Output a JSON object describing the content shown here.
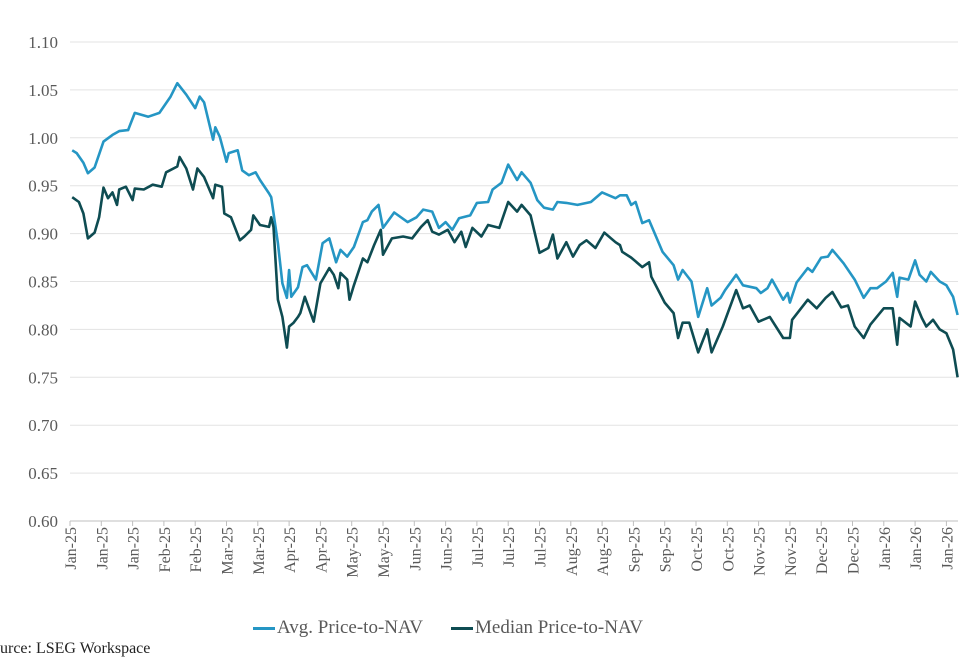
{
  "chart_data": {
    "type": "line",
    "title": "",
    "xlabel": "",
    "ylabel": "",
    "ylim": [
      0.6,
      1.1
    ],
    "yticks": [
      "0.60",
      "0.65",
      "0.70",
      "0.75",
      "0.80",
      "0.85",
      "0.90",
      "0.95",
      "1.00",
      "1.05",
      "1.10"
    ],
    "xlim": [
      "2025-01-02",
      "2026-02-03"
    ],
    "xtick_dates_start": "2025-01-02",
    "xtick_interval_days": 14,
    "xticks": [
      "Jan-25",
      "Jan-25",
      "Jan-25",
      "Feb-25",
      "Feb-25",
      "Mar-25",
      "Mar-25",
      "Apr-25",
      "Apr-25",
      "May-25",
      "May-25",
      "Jun-25",
      "Jun-25",
      "Jul-25",
      "Jul-25",
      "Jul-25",
      "Aug-25",
      "Aug-25",
      "Sep-25",
      "Sep-25",
      "Oct-25",
      "Oct-25",
      "Nov-25",
      "Nov-25",
      "Dec-25",
      "Dec-25",
      "Jan-26",
      "Jan-26",
      "Jan-26"
    ],
    "grid": "horizontal",
    "legend_position": "bottom",
    "series": [
      {
        "name": "Avg. Price-to-NAV",
        "color": "#2596c4",
        "points": [
          [
            "2025-01-03",
            0.987
          ],
          [
            "2025-01-05",
            0.984
          ],
          [
            "2025-01-08",
            0.974
          ],
          [
            "2025-01-10",
            0.963
          ],
          [
            "2025-01-13",
            0.969
          ],
          [
            "2025-01-17",
            0.996
          ],
          [
            "2025-01-21",
            1.003
          ],
          [
            "2025-01-24",
            1.007
          ],
          [
            "2025-01-28",
            1.008
          ],
          [
            "2025-01-31",
            1.026
          ],
          [
            "2025-02-06",
            1.022
          ],
          [
            "2025-02-11",
            1.026
          ],
          [
            "2025-02-16",
            1.043
          ],
          [
            "2025-02-19",
            1.057
          ],
          [
            "2025-02-23",
            1.045
          ],
          [
            "2025-02-27",
            1.031
          ],
          [
            "2025-03-01",
            1.043
          ],
          [
            "2025-03-03",
            1.037
          ],
          [
            "2025-03-07",
            0.998
          ],
          [
            "2025-03-08",
            1.011
          ],
          [
            "2025-03-10",
            1.001
          ],
          [
            "2025-03-13",
            0.975
          ],
          [
            "2025-03-14",
            0.984
          ],
          [
            "2025-03-18",
            0.987
          ],
          [
            "2025-03-20",
            0.966
          ],
          [
            "2025-03-23",
            0.961
          ],
          [
            "2025-03-26",
            0.964
          ],
          [
            "2025-03-28",
            0.956
          ],
          [
            "2025-04-01",
            0.942
          ],
          [
            "2025-04-02",
            0.938
          ],
          [
            "2025-04-05",
            0.89
          ],
          [
            "2025-04-07",
            0.848
          ],
          [
            "2025-04-09",
            0.833
          ],
          [
            "2025-04-10",
            0.862
          ],
          [
            "2025-04-11",
            0.834
          ],
          [
            "2025-04-14",
            0.844
          ],
          [
            "2025-04-16",
            0.865
          ],
          [
            "2025-04-18",
            0.867
          ],
          [
            "2025-04-22",
            0.852
          ],
          [
            "2025-04-25",
            0.89
          ],
          [
            "2025-04-28",
            0.895
          ],
          [
            "2025-05-01",
            0.87
          ],
          [
            "2025-05-03",
            0.883
          ],
          [
            "2025-05-06",
            0.876
          ],
          [
            "2025-05-09",
            0.886
          ],
          [
            "2025-05-13",
            0.912
          ],
          [
            "2025-05-15",
            0.914
          ],
          [
            "2025-05-17",
            0.923
          ],
          [
            "2025-05-20",
            0.93
          ],
          [
            "2025-05-22",
            0.906
          ],
          [
            "2025-05-27",
            0.922
          ],
          [
            "2025-06-02",
            0.912
          ],
          [
            "2025-06-06",
            0.917
          ],
          [
            "2025-06-09",
            0.925
          ],
          [
            "2025-06-13",
            0.923
          ],
          [
            "2025-06-16",
            0.906
          ],
          [
            "2025-06-19",
            0.912
          ],
          [
            "2025-06-22",
            0.904
          ],
          [
            "2025-06-25",
            0.916
          ],
          [
            "2025-06-30",
            0.919
          ],
          [
            "2025-07-03",
            0.932
          ],
          [
            "2025-07-08",
            0.933
          ],
          [
            "2025-07-10",
            0.946
          ],
          [
            "2025-07-14",
            0.953
          ],
          [
            "2025-07-17",
            0.972
          ],
          [
            "2025-07-21",
            0.956
          ],
          [
            "2025-07-23",
            0.964
          ],
          [
            "2025-07-27",
            0.953
          ],
          [
            "2025-07-30",
            0.935
          ],
          [
            "2025-08-02",
            0.927
          ],
          [
            "2025-08-06",
            0.925
          ],
          [
            "2025-08-08",
            0.933
          ],
          [
            "2025-08-12",
            0.932
          ],
          [
            "2025-08-17",
            0.93
          ],
          [
            "2025-08-23",
            0.933
          ],
          [
            "2025-08-28",
            0.943
          ],
          [
            "2025-09-03",
            0.937
          ],
          [
            "2025-09-05",
            0.94
          ],
          [
            "2025-09-08",
            0.94
          ],
          [
            "2025-09-10",
            0.93
          ],
          [
            "2025-09-12",
            0.933
          ],
          [
            "2025-09-15",
            0.911
          ],
          [
            "2025-09-18",
            0.914
          ],
          [
            "2025-09-24",
            0.881
          ],
          [
            "2025-09-29",
            0.867
          ],
          [
            "2025-10-01",
            0.852
          ],
          [
            "2025-10-03",
            0.862
          ],
          [
            "2025-10-07",
            0.85
          ],
          [
            "2025-10-10",
            0.813
          ],
          [
            "2025-10-14",
            0.843
          ],
          [
            "2025-10-16",
            0.825
          ],
          [
            "2025-10-20",
            0.833
          ],
          [
            "2025-10-22",
            0.841
          ],
          [
            "2025-10-27",
            0.857
          ],
          [
            "2025-10-30",
            0.846
          ],
          [
            "2025-11-05",
            0.843
          ],
          [
            "2025-11-07",
            0.838
          ],
          [
            "2025-11-10",
            0.843
          ],
          [
            "2025-11-12",
            0.852
          ],
          [
            "2025-11-17",
            0.831
          ],
          [
            "2025-11-19",
            0.838
          ],
          [
            "2025-11-20",
            0.828
          ],
          [
            "2025-11-23",
            0.849
          ],
          [
            "2025-11-28",
            0.864
          ],
          [
            "2025-11-30",
            0.86
          ],
          [
            "2025-12-04",
            0.875
          ],
          [
            "2025-12-07",
            0.876
          ],
          [
            "2025-12-09",
            0.883
          ],
          [
            "2025-12-14",
            0.869
          ],
          [
            "2025-12-19",
            0.852
          ],
          [
            "2025-12-23",
            0.833
          ],
          [
            "2025-12-26",
            0.843
          ],
          [
            "2025-12-29",
            0.843
          ],
          [
            "2026-01-02",
            0.85
          ],
          [
            "2026-01-05",
            0.859
          ],
          [
            "2026-01-07",
            0.834
          ],
          [
            "2026-01-08",
            0.854
          ],
          [
            "2026-01-12",
            0.852
          ],
          [
            "2026-01-15",
            0.872
          ],
          [
            "2026-01-17",
            0.857
          ],
          [
            "2026-01-20",
            0.85
          ],
          [
            "2026-01-22",
            0.86
          ],
          [
            "2026-01-26",
            0.85
          ],
          [
            "2026-01-29",
            0.846
          ],
          [
            "2026-02-01",
            0.834
          ],
          [
            "2026-02-03",
            0.815
          ]
        ]
      },
      {
        "name": "Median Price-to-NAV",
        "color": "#0e4c52",
        "points": [
          [
            "2025-01-03",
            0.938
          ],
          [
            "2025-01-06",
            0.933
          ],
          [
            "2025-01-08",
            0.921
          ],
          [
            "2025-01-10",
            0.895
          ],
          [
            "2025-01-13",
            0.901
          ],
          [
            "2025-01-15",
            0.917
          ],
          [
            "2025-01-17",
            0.948
          ],
          [
            "2025-01-19",
            0.937
          ],
          [
            "2025-01-21",
            0.943
          ],
          [
            "2025-01-23",
            0.93
          ],
          [
            "2025-01-24",
            0.946
          ],
          [
            "2025-01-27",
            0.949
          ],
          [
            "2025-01-30",
            0.935
          ],
          [
            "2025-01-31",
            0.947
          ],
          [
            "2025-02-04",
            0.946
          ],
          [
            "2025-02-08",
            0.951
          ],
          [
            "2025-02-12",
            0.949
          ],
          [
            "2025-02-14",
            0.964
          ],
          [
            "2025-02-19",
            0.97
          ],
          [
            "2025-02-20",
            0.98
          ],
          [
            "2025-02-23",
            0.968
          ],
          [
            "2025-02-26",
            0.946
          ],
          [
            "2025-02-28",
            0.968
          ],
          [
            "2025-03-03",
            0.959
          ],
          [
            "2025-03-07",
            0.937
          ],
          [
            "2025-03-08",
            0.951
          ],
          [
            "2025-03-11",
            0.949
          ],
          [
            "2025-03-12",
            0.921
          ],
          [
            "2025-03-15",
            0.917
          ],
          [
            "2025-03-19",
            0.893
          ],
          [
            "2025-03-21",
            0.897
          ],
          [
            "2025-03-24",
            0.904
          ],
          [
            "2025-03-25",
            0.919
          ],
          [
            "2025-03-28",
            0.909
          ],
          [
            "2025-04-01",
            0.907
          ],
          [
            "2025-04-02",
            0.917
          ],
          [
            "2025-04-03",
            0.907
          ],
          [
            "2025-04-05",
            0.831
          ],
          [
            "2025-04-07",
            0.813
          ],
          [
            "2025-04-09",
            0.781
          ],
          [
            "2025-04-10",
            0.803
          ],
          [
            "2025-04-12",
            0.807
          ],
          [
            "2025-04-14",
            0.813
          ],
          [
            "2025-04-15",
            0.817
          ],
          [
            "2025-04-17",
            0.834
          ],
          [
            "2025-04-21",
            0.808
          ],
          [
            "2025-04-24",
            0.848
          ],
          [
            "2025-04-28",
            0.864
          ],
          [
            "2025-04-30",
            0.857
          ],
          [
            "2025-05-02",
            0.843
          ],
          [
            "2025-05-03",
            0.859
          ],
          [
            "2025-05-06",
            0.852
          ],
          [
            "2025-05-07",
            0.831
          ],
          [
            "2025-05-09",
            0.846
          ],
          [
            "2025-05-13",
            0.874
          ],
          [
            "2025-05-15",
            0.87
          ],
          [
            "2025-05-18",
            0.888
          ],
          [
            "2025-05-21",
            0.904
          ],
          [
            "2025-05-22",
            0.878
          ],
          [
            "2025-05-26",
            0.895
          ],
          [
            "2025-05-31",
            0.897
          ],
          [
            "2025-06-04",
            0.895
          ],
          [
            "2025-06-08",
            0.907
          ],
          [
            "2025-06-11",
            0.914
          ],
          [
            "2025-06-13",
            0.902
          ],
          [
            "2025-06-16",
            0.899
          ],
          [
            "2025-06-20",
            0.904
          ],
          [
            "2025-06-23",
            0.891
          ],
          [
            "2025-06-26",
            0.902
          ],
          [
            "2025-06-28",
            0.886
          ],
          [
            "2025-07-01",
            0.906
          ],
          [
            "2025-07-05",
            0.897
          ],
          [
            "2025-07-08",
            0.909
          ],
          [
            "2025-07-13",
            0.906
          ],
          [
            "2025-07-17",
            0.933
          ],
          [
            "2025-07-21",
            0.923
          ],
          [
            "2025-07-23",
            0.93
          ],
          [
            "2025-07-27",
            0.919
          ],
          [
            "2025-07-31",
            0.88
          ],
          [
            "2025-08-04",
            0.885
          ],
          [
            "2025-08-06",
            0.899
          ],
          [
            "2025-08-08",
            0.874
          ],
          [
            "2025-08-12",
            0.891
          ],
          [
            "2025-08-15",
            0.876
          ],
          [
            "2025-08-18",
            0.888
          ],
          [
            "2025-08-21",
            0.893
          ],
          [
            "2025-08-25",
            0.885
          ],
          [
            "2025-08-29",
            0.901
          ],
          [
            "2025-09-03",
            0.891
          ],
          [
            "2025-09-05",
            0.888
          ],
          [
            "2025-09-06",
            0.881
          ],
          [
            "2025-09-10",
            0.875
          ],
          [
            "2025-09-15",
            0.865
          ],
          [
            "2025-09-18",
            0.87
          ],
          [
            "2025-09-19",
            0.855
          ],
          [
            "2025-09-25",
            0.828
          ],
          [
            "2025-09-29",
            0.817
          ],
          [
            "2025-10-01",
            0.791
          ],
          [
            "2025-10-03",
            0.807
          ],
          [
            "2025-10-06",
            0.807
          ],
          [
            "2025-10-10",
            0.776
          ],
          [
            "2025-10-14",
            0.8
          ],
          [
            "2025-10-16",
            0.776
          ],
          [
            "2025-10-21",
            0.803
          ],
          [
            "2025-10-27",
            0.841
          ],
          [
            "2025-10-30",
            0.822
          ],
          [
            "2025-11-02",
            0.825
          ],
          [
            "2025-11-06",
            0.808
          ],
          [
            "2025-11-11",
            0.813
          ],
          [
            "2025-11-17",
            0.791
          ],
          [
            "2025-11-20",
            0.791
          ],
          [
            "2025-11-21",
            0.81
          ],
          [
            "2025-11-28",
            0.831
          ],
          [
            "2025-12-02",
            0.822
          ],
          [
            "2025-12-06",
            0.833
          ],
          [
            "2025-12-09",
            0.839
          ],
          [
            "2025-12-13",
            0.823
          ],
          [
            "2025-12-16",
            0.825
          ],
          [
            "2025-12-19",
            0.803
          ],
          [
            "2025-12-23",
            0.791
          ],
          [
            "2025-12-26",
            0.805
          ],
          [
            "2026-01-01",
            0.822
          ],
          [
            "2026-01-05",
            0.822
          ],
          [
            "2026-01-07",
            0.784
          ],
          [
            "2026-01-08",
            0.812
          ],
          [
            "2026-01-13",
            0.803
          ],
          [
            "2026-01-15",
            0.829
          ],
          [
            "2026-01-18",
            0.812
          ],
          [
            "2026-01-20",
            0.803
          ],
          [
            "2026-01-23",
            0.81
          ],
          [
            "2026-01-26",
            0.8
          ],
          [
            "2026-01-29",
            0.796
          ],
          [
            "2026-02-01",
            0.779
          ],
          [
            "2026-02-03",
            0.75
          ]
        ]
      }
    ]
  },
  "legend": {
    "items": [
      {
        "label": "Avg. Price-to-NAV",
        "color": "#2596c4"
      },
      {
        "label": "Median Price-to-NAV",
        "color": "#0e4c52"
      }
    ]
  },
  "source": "urce: LSEG Workspace"
}
